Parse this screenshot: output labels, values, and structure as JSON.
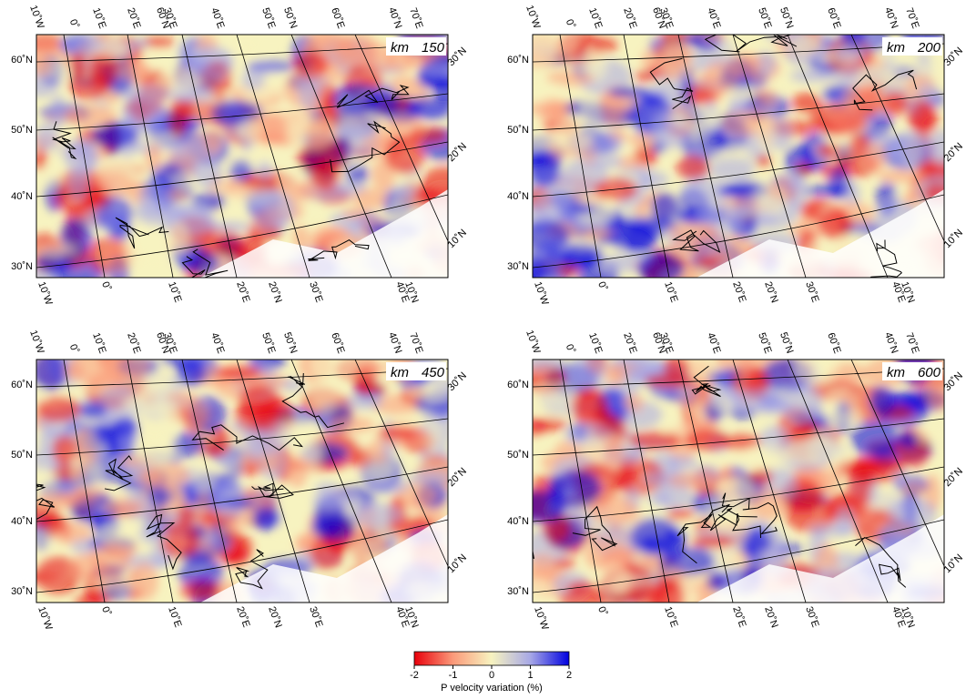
{
  "panels": [
    {
      "unit": "km",
      "depth": "150"
    },
    {
      "unit": "km",
      "depth": "200"
    },
    {
      "unit": "km",
      "depth": "450"
    },
    {
      "unit": "km",
      "depth": "600"
    }
  ],
  "axes": {
    "left": [
      "60˚N",
      "50˚N",
      "40˚N",
      "30˚N"
    ],
    "top": [
      "10˚W",
      "0˚",
      "10˚E",
      "20˚E",
      "60˚N",
      "30˚E",
      "40˚E",
      "50˚E",
      "50˚N",
      "60˚E",
      "40˚N",
      "70˚E"
    ],
    "right": [
      "30˚N",
      "20˚N",
      "10˚N"
    ],
    "bottom": [
      "10˚W",
      "0˚",
      "10˚E",
      "20˚E",
      "20˚N",
      "30˚E",
      "40˚E",
      "10˚N"
    ]
  },
  "colorbar": {
    "ticks": [
      "-2",
      "-1",
      "0",
      "1",
      "2"
    ],
    "label": "P velocity variation (%)",
    "colors": [
      "#e8000b",
      "#fb9a7a",
      "#f7f3c0",
      "#a7a8e6",
      "#0000e0"
    ]
  }
}
